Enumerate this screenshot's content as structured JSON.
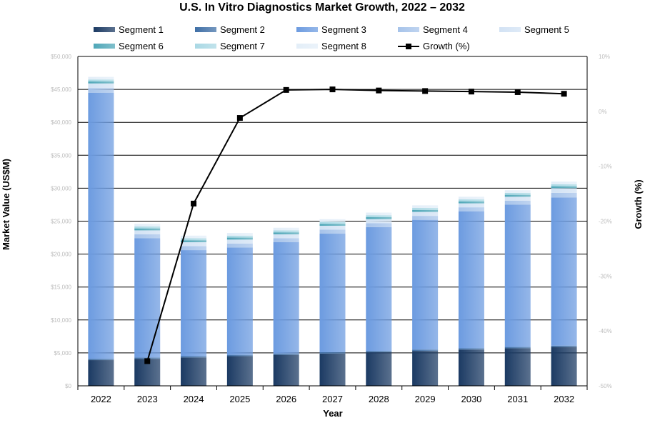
{
  "chart_data": {
    "type": "bar",
    "stacked": true,
    "title": "U.S. In Vitro Diagnostics Market Growth, 2022 – 2032",
    "xlabel": "Year",
    "ylabel": "Market Value (US$M)",
    "y2label": "Growth (%)",
    "categories": [
      "2022",
      "2023",
      "2024",
      "2025",
      "2026",
      "2027",
      "2028",
      "2029",
      "2030",
      "2031",
      "2032"
    ],
    "ylim": [
      0,
      50000
    ],
    "y2lim": [
      -50,
      10
    ],
    "y_ticks": [
      "$0",
      "$5,000",
      "$10,000",
      "$15,000",
      "$20,000",
      "$25,000",
      "$30,000",
      "$35,000",
      "$40,000",
      "$45,000",
      "$50,000"
    ],
    "y2_ticks": [
      "-50%",
      "-40%",
      "-30%",
      "-20%",
      "-10%",
      "0%",
      "10%"
    ],
    "grid": true,
    "legend_position": "top",
    "series": [
      {
        "name": "Segment 1",
        "color": "#1b3a63",
        "values": [
          3900,
          4100,
          4300,
          4500,
          4700,
          4900,
          5100,
          5300,
          5500,
          5700,
          5900
        ]
      },
      {
        "name": "Segment 2",
        "color": "#3f6fa6",
        "values": [
          200,
          200,
          200,
          200,
          200,
          200,
          200,
          200,
          200,
          200,
          200
        ]
      },
      {
        "name": "Segment 3",
        "color": "#6c9be0",
        "values": [
          40400,
          18100,
          16100,
          16300,
          16900,
          18000,
          18800,
          19700,
          20800,
          21600,
          22500
        ]
      },
      {
        "name": "Segment 4",
        "color": "#a6c3ea",
        "values": [
          700,
          600,
          600,
          600,
          600,
          600,
          600,
          600,
          600,
          600,
          700
        ]
      },
      {
        "name": "Segment 5",
        "color": "#d2e2f4",
        "values": [
          700,
          600,
          600,
          600,
          600,
          600,
          600,
          600,
          600,
          600,
          700
        ]
      },
      {
        "name": "Segment 6",
        "color": "#4fa7b8",
        "values": [
          300,
          300,
          300,
          300,
          300,
          300,
          300,
          300,
          300,
          300,
          300
        ]
      },
      {
        "name": "Segment 7",
        "color": "#a9d8e4",
        "values": [
          300,
          300,
          300,
          300,
          300,
          300,
          300,
          300,
          300,
          300,
          300
        ]
      },
      {
        "name": "Segment 8",
        "color": "#e3eef8",
        "values": [
          400,
          400,
          400,
          400,
          400,
          400,
          400,
          400,
          400,
          400,
          400
        ]
      }
    ],
    "line_series": {
      "name": "Growth (%)",
      "color": "#000000",
      "values": [
        null,
        -45.5,
        -16.8,
        -1.2,
        3.9,
        4.0,
        3.8,
        3.7,
        3.6,
        3.5,
        3.2
      ]
    }
  }
}
